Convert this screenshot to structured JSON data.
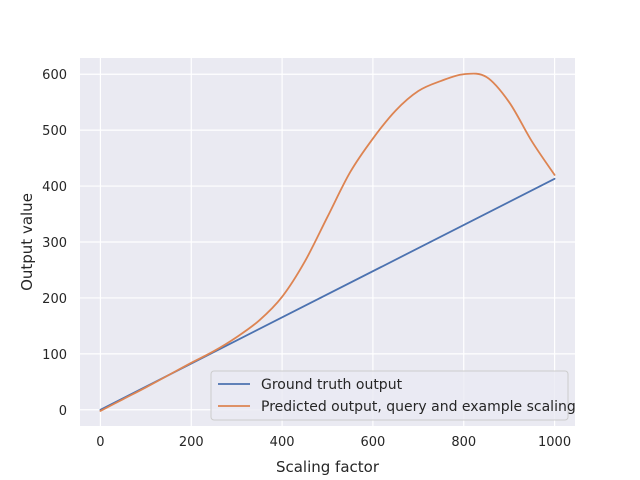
{
  "chart_data": {
    "type": "line",
    "title": "",
    "xlabel": "Scaling factor",
    "ylabel": "Output value",
    "xlim": [
      -45,
      1045
    ],
    "ylim": [
      -29,
      629
    ],
    "xticks": [
      0,
      200,
      400,
      600,
      800,
      1000
    ],
    "yticks": [
      0,
      100,
      200,
      300,
      400,
      500,
      600
    ],
    "grid": true,
    "legend_position": "lower-right",
    "series": [
      {
        "name": "Ground truth output",
        "color": "#4c72b0",
        "x": [
          0,
          1000
        ],
        "y": [
          0,
          413
        ]
      },
      {
        "name": "Predicted output, query and example scaling",
        "color": "#dd8452",
        "x": [
          0,
          50,
          100,
          150,
          200,
          250,
          300,
          350,
          400,
          450,
          500,
          550,
          600,
          650,
          700,
          750,
          800,
          850,
          900,
          950,
          1000
        ],
        "y": [
          -2,
          19,
          40,
          62,
          84,
          105,
          130,
          160,
          202,
          265,
          345,
          425,
          485,
          535,
          570,
          588,
          600,
          595,
          550,
          480,
          420
        ]
      }
    ]
  }
}
